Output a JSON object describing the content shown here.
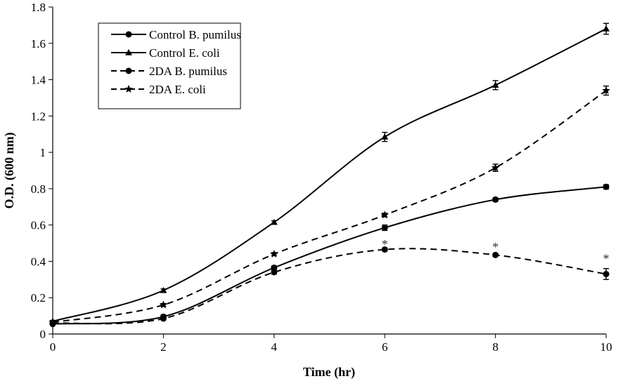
{
  "chart_data": {
    "type": "line",
    "title": "",
    "xlabel": "Time (hr)",
    "ylabel": "O.D. (600 nm)",
    "xlim": [
      0,
      10
    ],
    "ylim": [
      0,
      1.8
    ],
    "x_ticks": [
      0,
      2,
      4,
      6,
      8,
      10
    ],
    "y_ticks": [
      0,
      0.2,
      0.4,
      0.6,
      0.8,
      1,
      1.2,
      1.4,
      1.6,
      1.8
    ],
    "x_tick_labels": [
      "0",
      "2",
      "4",
      "6",
      "8",
      "10"
    ],
    "y_tick_labels": [
      "0",
      "0.2",
      "0.4",
      "0.6",
      "0.8",
      "1",
      "1.2",
      "1.4",
      "1.6",
      "1.8"
    ],
    "grid": false,
    "legend_position": "top-left",
    "x": [
      0,
      2,
      4,
      6,
      8,
      10
    ],
    "series": [
      {
        "name": "Control B. pumilus",
        "values": [
          0.055,
          0.095,
          0.365,
          0.585,
          0.74,
          0.81
        ],
        "errors": [
          0.005,
          0.01,
          0.01,
          0.015,
          0.01,
          0.012
        ],
        "marker": "circle",
        "dash": "solid"
      },
      {
        "name": "Control E. coli",
        "values": [
          0.07,
          0.24,
          0.615,
          1.085,
          1.37,
          1.68
        ],
        "errors": [
          0.005,
          0.008,
          0.008,
          0.025,
          0.025,
          0.03
        ],
        "marker": "triangle",
        "dash": "solid"
      },
      {
        "name": "2DA B. pumilus",
        "values": [
          0.06,
          0.085,
          0.34,
          0.465,
          0.435,
          0.33
        ],
        "errors": [
          0.005,
          0.008,
          0.01,
          0.008,
          0.008,
          0.03
        ],
        "marker": "circle",
        "dash": "dashed"
      },
      {
        "name": "2DA E. coli",
        "values": [
          0.065,
          0.16,
          0.44,
          0.655,
          0.915,
          1.34
        ],
        "errors": [
          0.005,
          0.008,
          0.008,
          0.01,
          0.02,
          0.025
        ],
        "marker": "star",
        "dash": "dashed"
      }
    ],
    "annotations": [
      {
        "text": "*",
        "x": 6,
        "y": 0.51
      },
      {
        "text": "*",
        "x": 8,
        "y": 0.495
      },
      {
        "text": "*",
        "x": 10,
        "y": 0.43
      }
    ],
    "colors": {
      "line": "#000000",
      "background": "#ffffff"
    }
  }
}
